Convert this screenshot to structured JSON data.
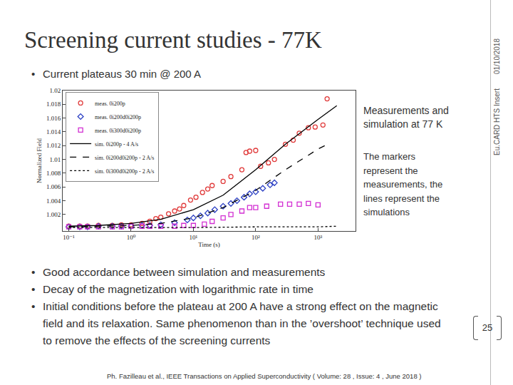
{
  "slide": {
    "title": "Screening current studies - 77K",
    "top_bullets": [
      "Current plateaus 30 min @ 200 A"
    ],
    "side_notes": [
      "Measurements and simulation at 77 K",
      "The markers represent the measurements, the lines represent the simulations"
    ],
    "bullets": [
      "Good accordance between simulation and measurements",
      "Decay of the magnetization with logarithmic rate in time",
      "Initial conditions before the plateau at 200 A have a strong effect on the magnetic field and its relaxation. Same phenomenon than in the ’overshoot’ technique used to remove the effects of the screening currents"
    ],
    "reference": "Ph. Fazilleau et al., IEEE Transactions on Applied Superconductivity ( Volume: 28 , Issue: 4 , June 2018 )",
    "side_header": [
      "Eu.CARD HTS Insert",
      "01/10/2018"
    ],
    "page": "25"
  },
  "chart_data": {
    "type": "scatter",
    "x_label": "Time (s)",
    "y_label": "Normalized Field",
    "log": "x",
    "grid": false,
    "legend": "top left",
    "xlim": [
      0.08,
      4000
    ],
    "xticks": [
      {
        "value": 0.1,
        "label": "10⁻¹"
      },
      {
        "value": 1,
        "label": "10⁰"
      },
      {
        "value": 10,
        "label": "10¹"
      },
      {
        "value": 100,
        "label": "10²"
      },
      {
        "value": 1000,
        "label": "10³"
      }
    ],
    "ylim": [
      0.9996,
      1.02
    ],
    "yticks": [
      1.002,
      1.004,
      1.006,
      1.008,
      1.01,
      1.012,
      1.014,
      1.016,
      1.018,
      1.02
    ],
    "series": [
      {
        "name": "meas. 0i200p",
        "type": "scatter",
        "marker": "circle",
        "color": "#e03a3a",
        "x": [
          0.1,
          0.15,
          0.2,
          0.3,
          0.5,
          0.7,
          1,
          1.5,
          2,
          2.5,
          3,
          4,
          5,
          6,
          7,
          9,
          11,
          14,
          17,
          20,
          30,
          40,
          60,
          70,
          80,
          100,
          120,
          160,
          200,
          300,
          400,
          500,
          700,
          900,
          1200,
          1400
        ],
        "values": [
          1.0003,
          1.0003,
          1.0003,
          1.0004,
          1.0004,
          1.0005,
          1.0005,
          1.0007,
          1.001,
          1.0014,
          1.0016,
          1.0021,
          1.0025,
          1.0028,
          1.0033,
          1.0041,
          1.0045,
          1.0052,
          1.0057,
          1.0062,
          1.0068,
          1.0075,
          1.0085,
          1.011,
          1.0112,
          1.0113,
          1.009,
          1.0095,
          1.01,
          1.0122,
          1.0128,
          1.0138,
          1.0146,
          1.0147,
          1.015,
          1.0188
        ]
      },
      {
        "name": "meas. 0i200d0i200p",
        "type": "scatter",
        "marker": "diamond",
        "color": "#2b3fc4",
        "x": [
          0.1,
          0.15,
          0.2,
          0.3,
          0.5,
          0.7,
          1,
          1.5,
          2,
          3,
          5,
          8,
          10,
          13,
          17,
          22,
          30,
          40,
          50,
          65,
          80,
          100,
          130,
          170,
          200
        ],
        "values": [
          1.0002,
          1.0002,
          1.0002,
          1.0003,
          1.0003,
          1.0003,
          1.0003,
          1.0004,
          1.0004,
          1.0005,
          1.0008,
          1.0012,
          1.0015,
          1.0018,
          1.0022,
          1.0027,
          1.0032,
          1.0036,
          1.004,
          1.0045,
          1.005,
          1.0053,
          1.0058,
          1.0063,
          1.0066
        ]
      },
      {
        "name": "meas. 0i300d0i200p",
        "type": "scatter",
        "marker": "square",
        "color": "#d22fd2",
        "x": [
          0.1,
          0.15,
          0.2,
          0.3,
          0.5,
          0.7,
          1,
          1.5,
          2,
          3,
          5,
          7,
          10,
          15,
          20,
          30,
          40,
          60,
          80,
          100,
          150,
          250,
          350,
          500,
          700,
          1000
        ],
        "values": [
          1.0002,
          1.0002,
          1.0002,
          1.0002,
          1.0002,
          1.0002,
          1.0003,
          1.0003,
          1.0003,
          1.0003,
          1.0003,
          1.0004,
          1.0004,
          1.0006,
          1.001,
          1.0015,
          1.002,
          1.0025,
          1.003,
          1.003,
          1.0032,
          1.0035,
          1.0035,
          1.0035,
          1.0036,
          1.0034
        ]
      },
      {
        "name": "sim. 0i200p - 4 A/s",
        "type": "line",
        "line_style": "solid",
        "color": "#000000",
        "x": [
          0.1,
          0.3,
          1,
          3,
          10,
          30,
          100,
          300,
          1000,
          2000
        ],
        "values": [
          1.0003,
          1.0004,
          1.0007,
          1.0013,
          1.0027,
          1.0048,
          1.0085,
          1.0122,
          1.0158,
          1.0178
        ]
      },
      {
        "name": "sim. 0i200d0i200p - 2 A/s",
        "type": "line",
        "line_style": "dashed",
        "color": "#000000",
        "x": [
          0.1,
          1,
          3,
          10,
          30,
          100,
          300,
          1000,
          1500
        ],
        "values": [
          1.0002,
          1.0004,
          1.0007,
          1.0015,
          1.003,
          1.0055,
          1.0085,
          1.0115,
          1.0123
        ]
      },
      {
        "name": "sim. 0i300d0i200p - 2 A/s",
        "type": "line",
        "line_style": "dotted",
        "color": "#000000",
        "x": [
          0.1,
          1,
          10,
          100,
          1000,
          2000
        ],
        "values": [
          1.0001,
          1.0001,
          1.0001,
          1.0002,
          1.0002,
          1.0003
        ]
      }
    ]
  }
}
